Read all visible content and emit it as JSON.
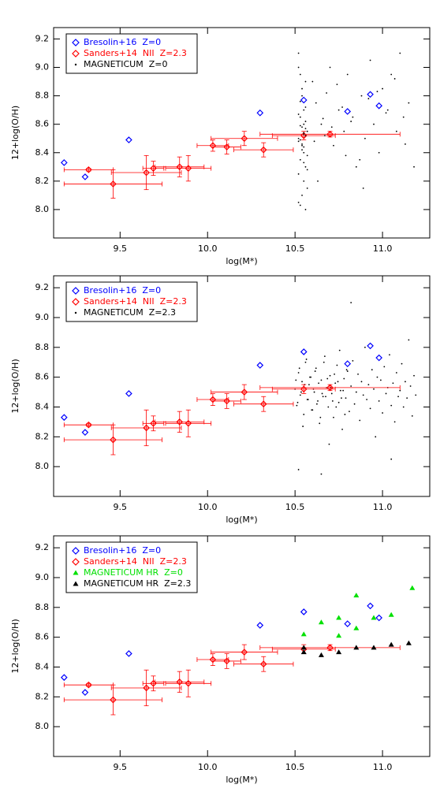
{
  "chart_data": [
    {
      "type": "scatter",
      "xlabel": "log(M*)",
      "ylabel": "12+log(O/H)",
      "xlim": [
        9.12,
        11.27
      ],
      "ylim": [
        7.8,
        9.28
      ],
      "xticks": [
        9.5,
        {
          "value": 10.0,
          "label": "10.0"
        },
        10.5,
        {
          "value": 11.0,
          "label": "11.0"
        }
      ],
      "yticks": [
        {
          "value": 8.0,
          "label": "8.0"
        },
        8.2,
        8.4,
        8.6,
        8.8,
        {
          "value": 9.0,
          "label": "9.0"
        },
        9.2
      ],
      "series": [
        {
          "name": "Bresolin+16  Z=0",
          "color": "#0000ff",
          "marker": "diamond",
          "x": [
            9.18,
            9.3,
            9.55,
            10.3,
            10.55,
            10.8,
            10.93,
            10.98
          ],
          "values": [
            8.33,
            8.23,
            8.49,
            8.68,
            8.77,
            8.69,
            8.81,
            8.73
          ]
        },
        {
          "name": "Sanders+14  NII  Z=2.3",
          "color": "#ff0000",
          "marker": "diamond",
          "x": [
            9.32,
            9.46,
            9.65,
            9.69,
            9.84,
            9.89,
            10.03,
            10.11,
            10.21,
            10.32,
            10.55,
            10.7
          ],
          "values": [
            8.28,
            8.18,
            8.26,
            8.29,
            8.3,
            8.29,
            8.45,
            8.44,
            8.5,
            8.42,
            8.52,
            8.53
          ],
          "xerr": [
            0.14,
            0.28,
            0.2,
            0.06,
            0.14,
            0.13,
            0.09,
            0.08,
            0.19,
            0.17,
            0.18,
            0.4
          ],
          "yerr": [
            0.01,
            0.1,
            0.12,
            0.05,
            0.07,
            0.09,
            0.04,
            0.05,
            0.05,
            0.05,
            0.03,
            0.02
          ]
        },
        {
          "name": "MAGNETICUM  Z=0",
          "color": "#000000",
          "marker": "dot",
          "x": [
            10.52,
            10.53,
            10.54,
            10.55,
            10.56,
            10.57,
            10.52,
            10.54,
            10.55,
            10.53,
            10.56,
            10.52,
            10.55,
            10.57,
            10.54,
            10.53,
            10.55,
            10.56,
            10.52,
            10.54,
            10.53,
            10.55,
            10.57,
            10.56,
            10.54,
            10.52,
            10.55,
            10.53,
            10.56,
            10.54,
            10.55,
            10.52,
            10.57,
            10.53,
            10.56,
            10.54,
            10.55,
            10.53,
            10.52,
            10.56,
            10.6,
            10.62,
            10.65,
            10.68,
            10.7,
            10.72,
            10.75,
            10.78,
            10.8,
            10.83,
            10.85,
            10.88,
            10.9,
            10.93,
            10.95,
            10.98,
            11.0,
            11.03,
            11.05,
            11.08,
            11.1,
            11.12,
            11.15,
            11.18,
            10.63,
            10.67,
            10.74,
            10.82,
            10.87,
            10.92,
            11.02,
            11.07,
            10.61,
            10.71,
            10.77,
            10.89,
            10.97,
            11.13,
            10.66,
            10.79
          ],
          "values": [
            9.1,
            8.95,
            8.8,
            8.7,
            8.62,
            8.55,
            8.5,
            8.45,
            8.4,
            8.35,
            8.3,
            8.25,
            8.2,
            8.15,
            8.1,
            8.03,
            8.6,
            8.52,
            8.48,
            8.58,
            8.65,
            8.44,
            8.38,
            8.72,
            8.85,
            9.0,
            8.54,
            8.49,
            8.57,
            8.42,
            8.33,
            8.67,
            8.28,
            8.76,
            8.9,
            8.46,
            8.53,
            8.59,
            8.05,
            8.0,
            8.9,
            8.75,
            8.6,
            8.82,
            9.0,
            8.45,
            8.7,
            8.55,
            8.95,
            8.65,
            8.3,
            8.8,
            8.5,
            9.05,
            8.6,
            8.4,
            8.85,
            8.7,
            8.95,
            8.55,
            9.1,
            8.65,
            8.75,
            8.3,
            8.2,
            8.52,
            8.88,
            8.62,
            8.35,
            8.78,
            8.68,
            8.92,
            8.48,
            8.58,
            8.72,
            8.15,
            8.83,
            8.46,
            8.64,
            8.38
          ]
        }
      ]
    },
    {
      "type": "scatter",
      "xlabel": "log(M*)",
      "ylabel": "12+log(O/H)",
      "xlim": [
        9.12,
        11.27
      ],
      "ylim": [
        7.8,
        9.28
      ],
      "xticks": [
        9.5,
        {
          "value": 10.0,
          "label": "10.0"
        },
        10.5,
        {
          "value": 11.0,
          "label": "11.0"
        }
      ],
      "yticks": [
        {
          "value": 8.0,
          "label": "8.0"
        },
        8.2,
        8.4,
        8.6,
        8.8,
        {
          "value": 9.0,
          "label": "9.0"
        },
        9.2
      ],
      "series": [
        {
          "name": "MAGNETICUM  Z=2.3",
          "color": "#000000",
          "marker": "dot",
          "x": [
            10.5,
            10.51,
            10.52,
            10.53,
            10.54,
            10.55,
            10.56,
            10.57,
            10.58,
            10.59,
            10.6,
            10.61,
            10.62,
            10.63,
            10.64,
            10.65,
            10.66,
            10.67,
            10.68,
            10.69,
            10.7,
            10.71,
            10.72,
            10.73,
            10.74,
            10.75,
            10.76,
            10.77,
            10.78,
            10.79,
            10.8,
            10.81,
            10.82,
            10.83,
            10.84,
            10.85,
            10.86,
            10.87,
            10.88,
            10.89,
            10.9,
            10.91,
            10.92,
            10.93,
            10.94,
            10.95,
            10.96,
            10.97,
            10.98,
            10.99,
            11.0,
            11.01,
            11.02,
            11.03,
            11.04,
            11.05,
            11.06,
            11.07,
            11.08,
            11.09,
            11.1,
            11.11,
            11.12,
            11.13,
            11.14,
            11.15,
            11.16,
            11.17,
            11.18,
            11.19,
            10.505,
            10.515,
            10.525,
            10.535,
            10.545,
            10.555,
            10.565,
            10.575,
            10.585,
            10.595,
            10.605,
            10.615,
            10.625,
            10.635,
            10.645,
            10.655,
            10.665,
            10.675,
            10.685,
            10.695,
            10.705,
            10.715,
            10.725,
            10.735,
            10.745,
            10.755,
            10.765,
            10.775,
            10.785,
            10.795,
            10.82,
            10.65,
            10.52,
            11.05
          ],
          "values": [
            8.52,
            8.41,
            8.63,
            8.48,
            8.57,
            8.35,
            8.7,
            8.45,
            8.55,
            8.6,
            8.38,
            8.5,
            8.66,
            8.44,
            8.29,
            8.58,
            8.47,
            8.74,
            8.53,
            8.4,
            8.61,
            8.49,
            8.33,
            8.56,
            8.68,
            8.43,
            8.51,
            8.25,
            8.59,
            8.46,
            8.64,
            8.37,
            8.54,
            8.71,
            8.42,
            8.5,
            8.62,
            8.31,
            8.57,
            8.48,
            8.8,
            8.45,
            8.55,
            8.39,
            8.65,
            8.52,
            8.2,
            8.6,
            8.44,
            8.58,
            8.36,
            8.67,
            8.49,
            8.53,
            8.75,
            8.41,
            8.56,
            8.3,
            8.63,
            8.47,
            8.51,
            8.69,
            8.4,
            8.57,
            8.46,
            8.85,
            8.54,
            8.34,
            8.61,
            8.48,
            8.58,
            8.43,
            8.66,
            8.5,
            8.27,
            8.55,
            8.72,
            8.45,
            8.6,
            8.38,
            8.52,
            8.64,
            8.42,
            8.56,
            8.33,
            8.49,
            8.7,
            8.47,
            8.59,
            8.15,
            8.53,
            8.44,
            8.62,
            8.4,
            8.57,
            8.78,
            8.46,
            8.51,
            8.35,
            8.65,
            9.1,
            7.95,
            7.98,
            8.05
          ]
        },
        {
          "name": "Bresolin+16  Z=0",
          "color": "#0000ff",
          "marker": "diamond",
          "x": [
            9.18,
            9.3,
            9.55,
            10.3,
            10.55,
            10.8,
            10.93,
            10.98
          ],
          "values": [
            8.33,
            8.23,
            8.49,
            8.68,
            8.77,
            8.69,
            8.81,
            8.73
          ]
        },
        {
          "name": "Sanders+14  NII  Z=2.3",
          "color": "#ff0000",
          "marker": "diamond",
          "x": [
            9.32,
            9.46,
            9.65,
            9.69,
            9.84,
            9.89,
            10.03,
            10.11,
            10.21,
            10.32,
            10.55,
            10.7
          ],
          "values": [
            8.28,
            8.18,
            8.26,
            8.29,
            8.3,
            8.29,
            8.45,
            8.44,
            8.5,
            8.42,
            8.52,
            8.53
          ],
          "xerr": [
            0.14,
            0.28,
            0.2,
            0.06,
            0.14,
            0.13,
            0.09,
            0.08,
            0.19,
            0.17,
            0.18,
            0.4
          ],
          "yerr": [
            0.01,
            0.1,
            0.12,
            0.05,
            0.07,
            0.09,
            0.04,
            0.05,
            0.05,
            0.05,
            0.03,
            0.02
          ]
        }
      ]
    },
    {
      "type": "scatter",
      "xlabel": "log(M*)",
      "ylabel": "12+log(O/H)",
      "xlim": [
        9.12,
        11.27
      ],
      "ylim": [
        7.8,
        9.28
      ],
      "xticks": [
        9.5,
        {
          "value": 10.0,
          "label": "10.0"
        },
        10.5,
        {
          "value": 11.0,
          "label": "11.0"
        }
      ],
      "yticks": [
        {
          "value": 8.0,
          "label": "8.0"
        },
        8.2,
        8.4,
        8.6,
        8.8,
        {
          "value": 9.0,
          "label": "9.0"
        },
        9.2
      ],
      "series": [
        {
          "name": "Bresolin+16  Z=0",
          "color": "#0000ff",
          "marker": "diamond",
          "x": [
            9.18,
            9.3,
            9.55,
            10.3,
            10.55,
            10.8,
            10.93,
            10.98
          ],
          "values": [
            8.33,
            8.23,
            8.49,
            8.68,
            8.77,
            8.69,
            8.81,
            8.73
          ]
        },
        {
          "name": "Sanders+14  NII  Z=2.3",
          "color": "#ff0000",
          "marker": "diamond",
          "x": [
            9.32,
            9.46,
            9.65,
            9.69,
            9.84,
            9.89,
            10.03,
            10.11,
            10.21,
            10.32,
            10.55,
            10.7
          ],
          "values": [
            8.28,
            8.18,
            8.26,
            8.29,
            8.3,
            8.29,
            8.45,
            8.44,
            8.5,
            8.42,
            8.52,
            8.53
          ],
          "xerr": [
            0.14,
            0.28,
            0.2,
            0.06,
            0.14,
            0.13,
            0.09,
            0.08,
            0.19,
            0.17,
            0.18,
            0.4
          ],
          "yerr": [
            0.01,
            0.1,
            0.12,
            0.05,
            0.07,
            0.09,
            0.04,
            0.05,
            0.05,
            0.05,
            0.03,
            0.02
          ]
        },
        {
          "name": "MAGNETICUM HR  Z=0",
          "color": "#00e000",
          "marker": "triangle",
          "x": [
            10.55,
            10.65,
            10.75,
            10.75,
            10.85,
            10.85,
            10.95,
            11.05,
            11.17
          ],
          "values": [
            8.62,
            8.7,
            8.73,
            8.61,
            8.88,
            8.66,
            8.73,
            8.75,
            8.93
          ]
        },
        {
          "name": "MAGNETICUM HR  Z=2.3",
          "color": "#000000",
          "marker": "triangle",
          "x": [
            10.55,
            10.55,
            10.65,
            10.75,
            10.85,
            10.95,
            11.05,
            11.15
          ],
          "values": [
            8.53,
            8.5,
            8.48,
            8.5,
            8.53,
            8.53,
            8.55,
            8.56
          ]
        }
      ]
    }
  ]
}
